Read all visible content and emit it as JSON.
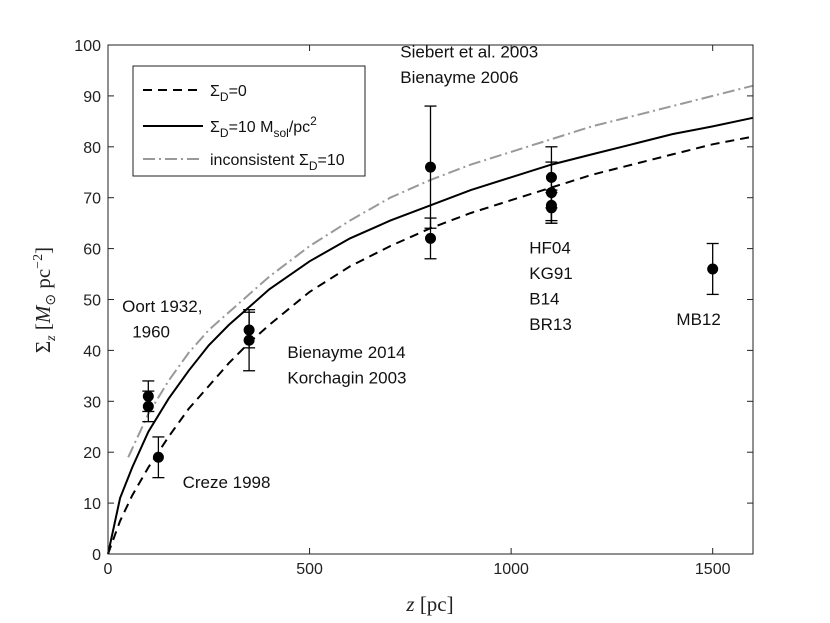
{
  "chart_data": {
    "type": "line",
    "xlabel": "z [pc]",
    "ylabel": "Σz [M⊙ pc⁻²]",
    "xlim": [
      0,
      1600
    ],
    "ylim": [
      0,
      100
    ],
    "xticks": [
      0,
      500,
      1000,
      1500
    ],
    "yticks": [
      0,
      10,
      20,
      30,
      40,
      50,
      60,
      70,
      80,
      90,
      100
    ],
    "grid": false,
    "legend_position": "top-left",
    "series": [
      {
        "name": "ΣD=0",
        "style": "dashed",
        "color": "#000000",
        "x": [
          0,
          30,
          60,
          100,
          150,
          200,
          250,
          300,
          350,
          400,
          500,
          600,
          700,
          800,
          900,
          1000,
          1100,
          1200,
          1300,
          1400,
          1500,
          1600
        ],
        "y": [
          0,
          6.5,
          11.5,
          17,
          23,
          28.5,
          33,
          37.5,
          41.5,
          45,
          51.5,
          56.5,
          60.5,
          64,
          67,
          69.5,
          72,
          74.5,
          76.5,
          78.5,
          80.5,
          82
        ]
      },
      {
        "name": "ΣD=10 Msol/pc2",
        "style": "solid",
        "color": "#000000",
        "x": [
          0,
          30,
          60,
          100,
          150,
          200,
          250,
          300,
          350,
          400,
          500,
          600,
          700,
          800,
          900,
          1000,
          1100,
          1200,
          1300,
          1400,
          1500,
          1600
        ],
        "y": [
          0,
          11,
          17,
          24,
          30.5,
          36,
          41,
          45,
          48.5,
          52,
          57.5,
          62,
          65.5,
          68.5,
          71.5,
          74,
          76.5,
          78.5,
          80.5,
          82.5,
          84,
          85.7
        ]
      },
      {
        "name": "inconsistent ΣD=10",
        "style": "dashdot",
        "color": "#999999",
        "x": [
          50,
          100,
          150,
          200,
          250,
          300,
          350,
          400,
          500,
          600,
          700,
          800,
          900,
          1000,
          1100,
          1200,
          1300,
          1400,
          1500,
          1600
        ],
        "y": [
          19,
          27.5,
          34,
          39.5,
          44,
          47.5,
          51,
          54.5,
          60.5,
          65.5,
          70,
          73.5,
          76.5,
          79,
          81.5,
          84,
          86,
          88,
          90,
          92
        ]
      }
    ],
    "points": [
      {
        "x": 100,
        "y": 31,
        "err": 3
      },
      {
        "x": 100,
        "y": 29,
        "err": 3
      },
      {
        "x": 125,
        "y": 19,
        "err": 4
      },
      {
        "x": 350,
        "y": 44,
        "err": 3.5
      },
      {
        "x": 350,
        "y": 42,
        "err": 6
      },
      {
        "x": 800,
        "y": 76,
        "err": 12
      },
      {
        "x": 800,
        "y": 62,
        "err": 4
      },
      {
        "x": 1100,
        "y": 74,
        "err": 6
      },
      {
        "x": 1100,
        "y": 71,
        "err": 6
      },
      {
        "x": 1100,
        "y": 68.5,
        "err": 3
      },
      {
        "x": 1100,
        "y": 68,
        "err": 3
      },
      {
        "x": 1500,
        "y": 56,
        "err": 5
      }
    ],
    "annotations": [
      {
        "text": "Siebert et al. 2003",
        "x": 725,
        "y": 97.5
      },
      {
        "text": "Bienayme 2006",
        "x": 725,
        "y": 92.5
      },
      {
        "text": "Oort 1932,",
        "x": 35,
        "y": 47.5
      },
      {
        "text": "1960",
        "x": 60,
        "y": 42.5
      },
      {
        "text": "Bienayme 2014",
        "x": 445,
        "y": 38.5
      },
      {
        "text": "Korchagin 2003",
        "x": 445,
        "y": 33.5
      },
      {
        "text": "Creze 1998",
        "x": 185,
        "y": 13
      },
      {
        "text": "HF04",
        "x": 1045,
        "y": 59
      },
      {
        "text": "KG91",
        "x": 1045,
        "y": 54
      },
      {
        "text": "B14",
        "x": 1045,
        "y": 49
      },
      {
        "text": "BR13",
        "x": 1045,
        "y": 44
      },
      {
        "text": "MB12",
        "x": 1410,
        "y": 45
      }
    ]
  }
}
